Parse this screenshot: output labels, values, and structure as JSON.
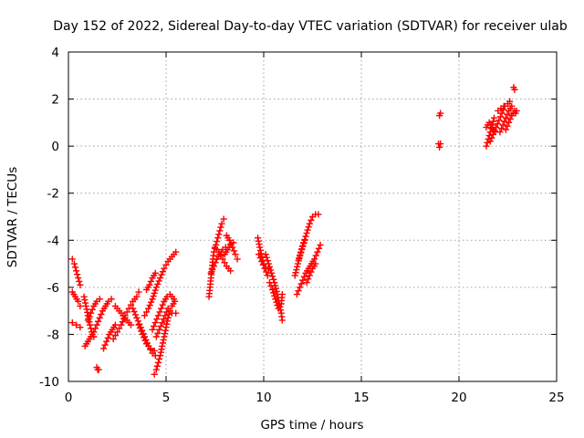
{
  "chart_data": {
    "type": "scatter",
    "title": "Day 152 of 2022, Sidereal Day-to-day VTEC variation (SDTVAR) for receiver ulab",
    "xlabel": "GPS time / hours",
    "ylabel": "SDTVAR / TECUs",
    "xlim": [
      0,
      25
    ],
    "ylim": [
      -10,
      4
    ],
    "xticks": [
      "0",
      "5",
      "10",
      "15",
      "20",
      "25"
    ],
    "yticks": [
      "-10",
      "-8",
      "-6",
      "-4",
      "-2",
      "0",
      "2",
      "4"
    ],
    "grid": true,
    "marker": "plus",
    "color": "#ff0000",
    "series": [
      {
        "name": "SDTVAR",
        "segments": [
          [
            [
              0.2,
              -4.8
            ],
            [
              0.3,
              -5.0
            ],
            [
              0.4,
              -5.3
            ],
            [
              0.5,
              -5.6
            ],
            [
              0.6,
              -5.9
            ]
          ],
          [
            [
              0.2,
              -6.2
            ],
            [
              0.35,
              -6.4
            ],
            [
              0.5,
              -6.6
            ],
            [
              0.6,
              -6.8
            ]
          ],
          [
            [
              0.2,
              -7.5
            ],
            [
              0.4,
              -7.6
            ],
            [
              0.6,
              -7.7
            ]
          ],
          [
            [
              0.8,
              -6.4
            ],
            [
              0.9,
              -6.8
            ],
            [
              1.0,
              -7.2
            ],
            [
              1.1,
              -7.6
            ],
            [
              1.2,
              -7.9
            ],
            [
              1.3,
              -8.1
            ]
          ],
          [
            [
              0.85,
              -8.5
            ],
            [
              1.0,
              -8.3
            ],
            [
              1.15,
              -8.1
            ],
            [
              1.3,
              -7.9
            ],
            [
              1.45,
              -7.6
            ],
            [
              1.6,
              -7.3
            ],
            [
              1.75,
              -7.0
            ],
            [
              1.9,
              -6.8
            ],
            [
              2.05,
              -6.6
            ],
            [
              2.2,
              -6.5
            ]
          ],
          [
            [
              1.0,
              -7.4
            ],
            [
              1.15,
              -7.1
            ],
            [
              1.3,
              -6.8
            ],
            [
              1.45,
              -6.6
            ],
            [
              1.6,
              -6.5
            ]
          ],
          [
            [
              1.45,
              -9.4
            ],
            [
              1.5,
              -9.5
            ],
            [
              1.55,
              -9.5
            ]
          ],
          [
            [
              1.8,
              -8.6
            ],
            [
              1.95,
              -8.3
            ],
            [
              2.1,
              -8.0
            ],
            [
              2.25,
              -7.8
            ],
            [
              2.4,
              -7.6
            ]
          ],
          [
            [
              2.3,
              -8.2
            ],
            [
              2.5,
              -7.9
            ],
            [
              2.7,
              -7.6
            ],
            [
              2.9,
              -7.2
            ],
            [
              3.1,
              -6.9
            ],
            [
              3.3,
              -6.6
            ],
            [
              3.5,
              -6.4
            ],
            [
              3.6,
              -6.2
            ]
          ],
          [
            [
              2.4,
              -6.8
            ],
            [
              2.6,
              -7.0
            ],
            [
              2.8,
              -7.2
            ],
            [
              3.0,
              -7.4
            ],
            [
              3.2,
              -7.6
            ]
          ],
          [
            [
              3.3,
              -6.9
            ],
            [
              3.5,
              -7.3
            ],
            [
              3.7,
              -7.7
            ],
            [
              3.9,
              -8.1
            ],
            [
              4.1,
              -8.5
            ],
            [
              4.3,
              -8.8
            ],
            [
              4.45,
              -8.9
            ]
          ],
          [
            [
              3.6,
              -7.6
            ],
            [
              3.8,
              -8.0
            ],
            [
              4.0,
              -8.4
            ],
            [
              4.2,
              -8.6
            ],
            [
              4.4,
              -8.7
            ]
          ],
          [
            [
              3.9,
              -7.2
            ],
            [
              4.1,
              -6.9
            ],
            [
              4.3,
              -6.5
            ],
            [
              4.5,
              -6.0
            ],
            [
              4.7,
              -5.6
            ],
            [
              4.9,
              -5.2
            ],
            [
              5.1,
              -4.9
            ],
            [
              5.3,
              -4.7
            ],
            [
              5.5,
              -4.5
            ]
          ],
          [
            [
              4.0,
              -6.1
            ],
            [
              4.15,
              -5.9
            ],
            [
              4.3,
              -5.6
            ],
            [
              4.45,
              -5.4
            ]
          ],
          [
            [
              4.4,
              -9.7
            ],
            [
              4.5,
              -9.5
            ],
            [
              4.6,
              -9.2
            ],
            [
              4.7,
              -8.9
            ],
            [
              4.8,
              -8.5
            ],
            [
              4.9,
              -8.1
            ],
            [
              5.0,
              -7.7
            ],
            [
              5.1,
              -7.3
            ],
            [
              5.2,
              -7.0
            ],
            [
              5.3,
              -6.8
            ],
            [
              5.45,
              -6.6
            ]
          ],
          [
            [
              4.3,
              -7.8
            ],
            [
              4.45,
              -7.5
            ],
            [
              4.6,
              -7.2
            ],
            [
              4.75,
              -6.9
            ],
            [
              4.9,
              -6.6
            ],
            [
              5.05,
              -6.4
            ],
            [
              5.2,
              -6.3
            ],
            [
              5.4,
              -6.5
            ]
          ],
          [
            [
              4.5,
              -8.1
            ],
            [
              4.65,
              -7.8
            ],
            [
              4.8,
              -7.5
            ],
            [
              4.95,
              -7.2
            ],
            [
              5.1,
              -6.9
            ],
            [
              5.3,
              -7.1
            ],
            [
              5.5,
              -7.1
            ]
          ],
          [
            [
              7.2,
              -6.4
            ],
            [
              7.25,
              -6.0
            ],
            [
              7.3,
              -5.6
            ],
            [
              7.35,
              -5.2
            ],
            [
              7.4,
              -4.8
            ],
            [
              7.45,
              -4.5
            ],
            [
              7.55,
              -4.2
            ],
            [
              7.65,
              -3.9
            ],
            [
              7.75,
              -3.6
            ],
            [
              7.85,
              -3.3
            ],
            [
              7.95,
              -3.1
            ]
          ],
          [
            [
              7.3,
              -5.4
            ],
            [
              7.45,
              -5.1
            ],
            [
              7.6,
              -4.8
            ],
            [
              7.75,
              -4.6
            ],
            [
              7.9,
              -4.4
            ],
            [
              8.05,
              -4.3
            ]
          ],
          [
            [
              8.0,
              -4.6
            ],
            [
              8.15,
              -4.4
            ],
            [
              8.3,
              -4.2
            ],
            [
              8.45,
              -4.1
            ]
          ],
          [
            [
              7.5,
              -4.3
            ],
            [
              7.7,
              -4.5
            ],
            [
              7.9,
              -4.8
            ],
            [
              8.1,
              -5.1
            ],
            [
              8.3,
              -5.3
            ]
          ],
          [
            [
              8.1,
              -3.8
            ],
            [
              8.25,
              -4.0
            ],
            [
              8.4,
              -4.3
            ],
            [
              8.55,
              -4.6
            ],
            [
              8.65,
              -4.8
            ]
          ],
          [
            [
              9.7,
              -3.9
            ],
            [
              9.8,
              -4.3
            ],
            [
              9.9,
              -4.7
            ],
            [
              10.0,
              -5.0
            ],
            [
              10.1,
              -5.2
            ],
            [
              10.25,
              -5.2
            ]
          ],
          [
            [
              9.75,
              -4.6
            ],
            [
              9.9,
              -4.9
            ],
            [
              10.05,
              -5.2
            ],
            [
              10.2,
              -5.5
            ]
          ],
          [
            [
              10.1,
              -4.6
            ],
            [
              10.25,
              -5.0
            ],
            [
              10.4,
              -5.4
            ],
            [
              10.55,
              -5.8
            ],
            [
              10.7,
              -6.3
            ],
            [
              10.8,
              -6.7
            ],
            [
              10.9,
              -7.1
            ],
            [
              10.95,
              -7.4
            ]
          ],
          [
            [
              10.3,
              -5.8
            ],
            [
              10.45,
              -6.1
            ],
            [
              10.6,
              -6.5
            ],
            [
              10.75,
              -6.9
            ]
          ],
          [
            [
              10.9,
              -6.7
            ],
            [
              10.95,
              -6.3
            ]
          ],
          [
            [
              11.6,
              -5.5
            ],
            [
              11.75,
              -5.0
            ],
            [
              11.9,
              -4.5
            ],
            [
              12.05,
              -4.1
            ],
            [
              12.2,
              -3.7
            ],
            [
              12.35,
              -3.3
            ],
            [
              12.5,
              -3.0
            ],
            [
              12.65,
              -2.9
            ],
            [
              12.8,
              -2.9
            ]
          ],
          [
            [
              11.7,
              -6.3
            ],
            [
              11.85,
              -6.0
            ],
            [
              12.0,
              -5.7
            ],
            [
              12.15,
              -5.4
            ],
            [
              12.3,
              -5.2
            ],
            [
              12.45,
              -5.0
            ],
            [
              12.6,
              -4.8
            ],
            [
              12.75,
              -4.5
            ],
            [
              12.9,
              -4.2
            ]
          ],
          [
            [
              11.8,
              -4.8
            ],
            [
              11.95,
              -4.4
            ],
            [
              12.1,
              -4.0
            ]
          ],
          [
            [
              12.2,
              -5.8
            ],
            [
              12.35,
              -5.5
            ],
            [
              12.5,
              -5.2
            ],
            [
              12.65,
              -5.0
            ]
          ],
          [
            [
              19.0,
              1.3
            ],
            [
              19.05,
              1.4
            ]
          ],
          [
            [
              18.95,
              0.1
            ],
            [
              19.0,
              -0.05
            ],
            [
              19.05,
              0.1
            ]
          ],
          [
            [
              21.4,
              0.0
            ],
            [
              21.5,
              0.3
            ],
            [
              21.6,
              0.6
            ],
            [
              21.7,
              0.9
            ],
            [
              21.8,
              1.2
            ]
          ],
          [
            [
              21.4,
              0.8
            ],
            [
              21.55,
              1.0
            ],
            [
              21.7,
              0.8
            ],
            [
              21.85,
              0.6
            ]
          ],
          [
            [
              21.6,
              0.2
            ],
            [
              21.75,
              0.5
            ],
            [
              21.9,
              0.8
            ],
            [
              22.05,
              1.1
            ],
            [
              22.2,
              1.4
            ],
            [
              22.35,
              1.7
            ]
          ],
          [
            [
              22.1,
              0.6
            ],
            [
              22.25,
              0.9
            ],
            [
              22.4,
              1.2
            ],
            [
              22.55,
              1.5
            ],
            [
              22.7,
              1.7
            ]
          ],
          [
            [
              22.0,
              1.5
            ],
            [
              22.15,
              1.6
            ],
            [
              22.3,
              1.7
            ]
          ],
          [
            [
              22.4,
              0.7
            ],
            [
              22.55,
              1.0
            ],
            [
              22.7,
              1.3
            ],
            [
              22.85,
              1.5
            ]
          ],
          [
            [
              22.8,
              2.5
            ],
            [
              22.85,
              2.4
            ]
          ],
          [
            [
              22.5,
              1.8
            ],
            [
              22.6,
              1.9
            ]
          ],
          [
            [
              22.9,
              1.4
            ],
            [
              22.95,
              1.5
            ]
          ]
        ]
      }
    ]
  }
}
